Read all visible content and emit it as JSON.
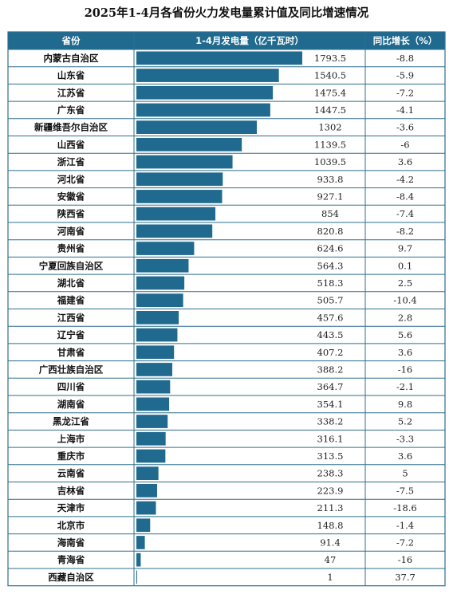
{
  "chart_data": {
    "type": "bar",
    "title": "2025年1-4月各省份火力发电量累计值及同比增速情况",
    "headers": {
      "province": "省份",
      "value": "1-4月发电量（亿千瓦时）",
      "growth": "同比增长（%）"
    },
    "categories": [
      "内蒙古自治区",
      "山东省",
      "江苏省",
      "广东省",
      "新疆维吾尔自治区",
      "山西省",
      "浙江省",
      "河北省",
      "安徽省",
      "陕西省",
      "河南省",
      "贵州省",
      "宁夏回族自治区",
      "湖北省",
      "福建省",
      "江西省",
      "辽宁省",
      "甘肃省",
      "广西壮族自治区",
      "四川省",
      "湖南省",
      "黑龙江省",
      "上海市",
      "重庆市",
      "云南省",
      "吉林省",
      "天津市",
      "北京市",
      "海南省",
      "青海省",
      "西藏自治区"
    ],
    "value_labels": [
      "1793.5",
      "1540.5",
      "1475.4",
      "1447.5",
      "1302",
      "1139.5",
      "1039.5",
      "933.8",
      "927.1",
      "854",
      "820.8",
      "624.6",
      "564.3",
      "518.3",
      "505.7",
      "457.6",
      "443.5",
      "407.2",
      "388.2",
      "364.7",
      "354.1",
      "338.2",
      "316.1",
      "313.5",
      "238.3",
      "223.9",
      "211.3",
      "148.8",
      "91.4",
      "47",
      "1"
    ],
    "values": [
      1793.5,
      1540.5,
      1475.4,
      1447.5,
      1302,
      1139.5,
      1039.5,
      933.8,
      927.1,
      854,
      820.8,
      624.6,
      564.3,
      518.3,
      505.7,
      457.6,
      443.5,
      407.2,
      388.2,
      364.7,
      354.1,
      338.2,
      316.1,
      313.5,
      238.3,
      223.9,
      211.3,
      148.8,
      91.4,
      47,
      1
    ],
    "growth_labels": [
      "-8.8",
      "-5.9",
      "-7.2",
      "-4.1",
      "-3.6",
      "-6",
      "3.6",
      "-4.2",
      "-8.4",
      "-7.4",
      "-8.2",
      "9.7",
      "0.1",
      "2.5",
      "-10.4",
      "2.8",
      "5.6",
      "3.6",
      "-16",
      "-2.1",
      "9.8",
      "5.2",
      "-3.3",
      "3.6",
      "5",
      "-7.5",
      "-18.6",
      "-1.4",
      "-7.2",
      "-16",
      "37.7"
    ],
    "growth": [
      -8.8,
      -5.9,
      -7.2,
      -4.1,
      -3.6,
      -6,
      3.6,
      -4.2,
      -8.4,
      -7.4,
      -8.2,
      9.7,
      0.1,
      2.5,
      -10.4,
      2.8,
      5.6,
      3.6,
      -16,
      -2.1,
      9.8,
      5.2,
      -3.3,
      3.6,
      5,
      -7.5,
      -18.6,
      -1.4,
      -7.2,
      -16,
      37.7
    ],
    "colors": {
      "header_bg": "#1f6a8e",
      "bar": "#1f6a8e",
      "grid": "#2e6f8e",
      "row_bg": "#ffffff"
    }
  }
}
